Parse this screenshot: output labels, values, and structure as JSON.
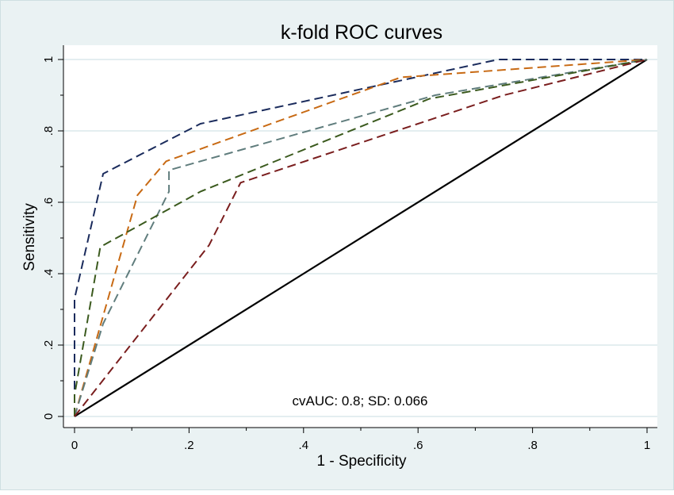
{
  "chart_data": {
    "type": "line",
    "title": "k-fold ROC curves",
    "xlabel": "1 - Specificity",
    "ylabel": "Sensitivity",
    "xlim": [
      0,
      1
    ],
    "ylim": [
      0,
      1
    ],
    "grid": true,
    "x_ticks": [
      0,
      0.2,
      0.4,
      0.6,
      0.8,
      1
    ],
    "x_tick_labels": [
      "0",
      ".2",
      ".4",
      ".6",
      ".8",
      "1"
    ],
    "y_ticks": [
      0,
      0.2,
      0.4,
      0.6,
      0.8,
      1
    ],
    "y_tick_labels": [
      "0",
      ".2",
      ".4",
      ".6",
      ".8",
      "1"
    ],
    "annotation": "cvAUC: 0.8; SD: 0.066",
    "colors": {
      "figure_background": "#eaf2f3",
      "plot_background": "#ffffff",
      "grid": "#d4e3e6",
      "reference_line": "#000000"
    },
    "reference_line": {
      "x": [
        0,
        1
      ],
      "y": [
        0,
        1
      ]
    },
    "series": [
      {
        "color": "#1a2b5c",
        "style": "dashed",
        "points": [
          [
            0,
            0
          ],
          [
            0,
            0.33
          ],
          [
            0.05,
            0.68
          ],
          [
            0.22,
            0.82
          ],
          [
            0.74,
            1
          ],
          [
            1,
            1
          ]
        ]
      },
      {
        "color": "#c86a14",
        "style": "dashed",
        "points": [
          [
            0,
            0
          ],
          [
            0.11,
            0.62
          ],
          [
            0.16,
            0.715
          ],
          [
            0.57,
            0.95
          ],
          [
            1,
            1
          ]
        ]
      },
      {
        "color": "#607d7d",
        "style": "dashed",
        "points": [
          [
            0,
            0
          ],
          [
            0.05,
            0.26
          ],
          [
            0.165,
            0.63
          ],
          [
            0.165,
            0.69
          ],
          [
            0.63,
            0.9
          ],
          [
            1,
            1
          ]
        ]
      },
      {
        "color": "#3b5a1e",
        "style": "dashed",
        "points": [
          [
            0,
            0
          ],
          [
            0,
            0.06
          ],
          [
            0.045,
            0.475
          ],
          [
            0.22,
            0.63
          ],
          [
            0.62,
            0.89
          ],
          [
            1,
            1
          ]
        ]
      },
      {
        "color": "#7a1e1e",
        "style": "dashed",
        "points": [
          [
            0,
            0
          ],
          [
            0.235,
            0.48
          ],
          [
            0.29,
            0.655
          ],
          [
            0.75,
            0.9
          ],
          [
            1,
            1
          ]
        ]
      }
    ]
  }
}
